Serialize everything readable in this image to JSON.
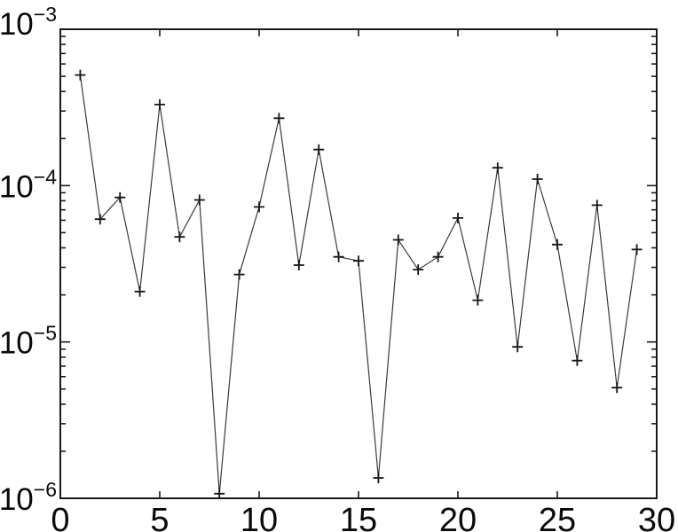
{
  "figure": {
    "background": "#ffffff",
    "frame_color": "#1a1a1a",
    "line_color": "#3a3a3a",
    "marker_color": "#161616",
    "text_color": "#0a0a0a"
  },
  "chart_data": {
    "type": "line",
    "scale": "semilog-y",
    "title": "",
    "xlabel": "",
    "ylabel": "",
    "grid": "off",
    "legend": "none",
    "marker": "+",
    "x": [
      1,
      2,
      3,
      4,
      5,
      6,
      7,
      8,
      9,
      10,
      11,
      12,
      13,
      14,
      15,
      16,
      17,
      18,
      19,
      20,
      21,
      22,
      23,
      24,
      25,
      26,
      27,
      28,
      29
    ],
    "y": [
      0.00051,
      6.1e-05,
      8.4e-05,
      2.1e-05,
      0.00033,
      4.7e-05,
      8.1e-05,
      1.07e-06,
      2.7e-05,
      7.3e-05,
      0.00027,
      3.1e-05,
      0.00017,
      3.5e-05,
      3.3e-05,
      1.35e-06,
      4.5e-05,
      2.9e-05,
      3.5e-05,
      6.2e-05,
      1.85e-05,
      0.00013,
      9.3e-06,
      0.00011,
      4.2e-05,
      7.6e-06,
      7.5e-05,
      5.1e-06,
      3.9e-05
    ],
    "xlim": [
      0,
      30
    ],
    "ylim": [
      1e-06,
      0.001
    ],
    "xticks": [
      0,
      5,
      10,
      15,
      20,
      25,
      30
    ],
    "xtick_labels": [
      "0",
      "5",
      "10",
      "15",
      "20",
      "25",
      "30"
    ],
    "ytick_values": [
      0.001,
      0.0001,
      1e-05,
      1e-06
    ],
    "ytick_labels": [
      {
        "base": "10",
        "exp": "−3"
      },
      {
        "base": "10",
        "exp": "−4"
      },
      {
        "base": "10",
        "exp": "−5"
      },
      {
        "base": "10",
        "exp": "−6"
      }
    ],
    "y_minor_ticks_per_decade": [
      2,
      3,
      4,
      5,
      6,
      7,
      8,
      9
    ]
  }
}
